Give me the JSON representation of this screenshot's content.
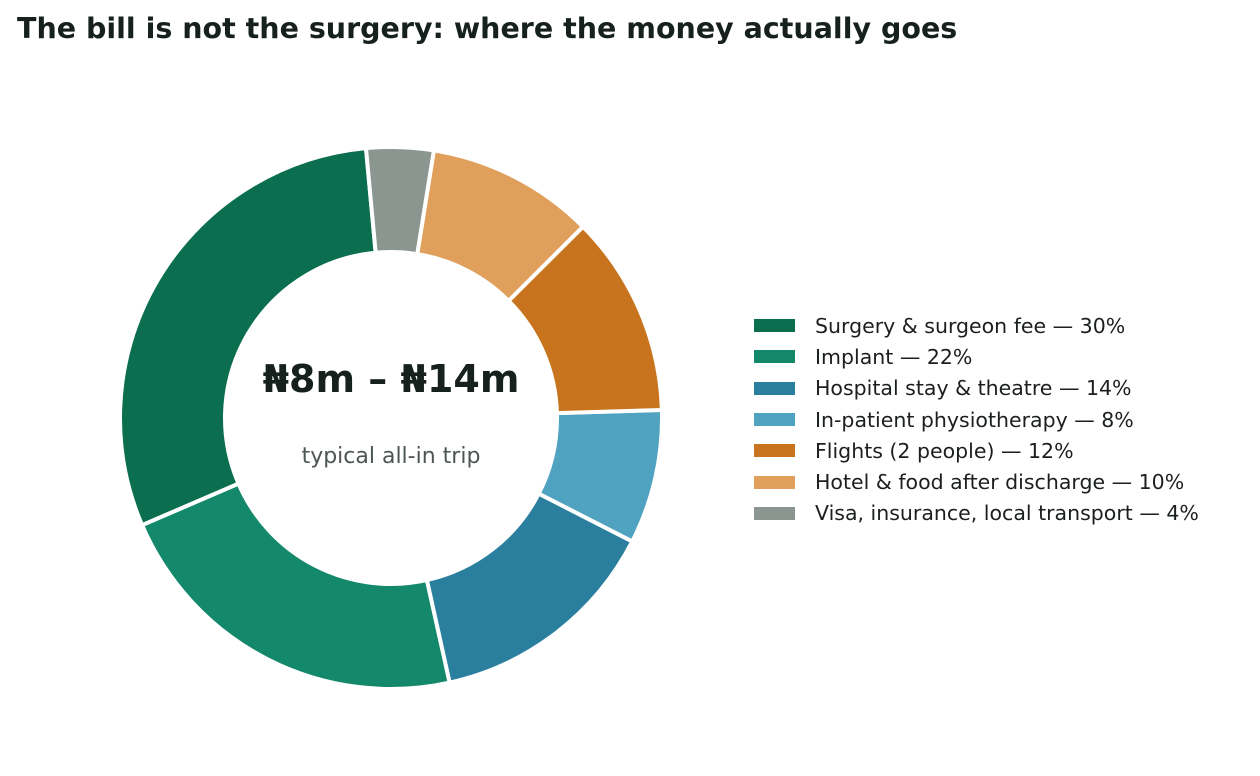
{
  "chart_data": {
    "type": "pie",
    "title": "The bill is not the surgery: where the money actually goes",
    "center_label": {
      "value": "₦8m – ₦14m",
      "subtitle": "typical all-in trip"
    },
    "legend_position": "right",
    "slices": [
      {
        "label": "Surgery & surgeon fee — 30%",
        "value": 30,
        "color": "#0b6e4f"
      },
      {
        "label": "Implant — 22%",
        "value": 22,
        "color": "#13886a"
      },
      {
        "label": "Hospital stay & theatre — 14%",
        "value": 14,
        "color": "#2b7f9e"
      },
      {
        "label": "In-patient physiotherapy — 8%",
        "value": 8,
        "color": "#4fa3c0"
      },
      {
        "label": "Flights (2 people) — 12%",
        "value": 12,
        "color": "#c8741e"
      },
      {
        "label": "Hotel & food after discharge — 10%",
        "value": 10,
        "color": "#e0a05c"
      },
      {
        "label": "Visa, insurance, local transport — 4%",
        "value": 4,
        "color": "#8c9690"
      }
    ]
  }
}
